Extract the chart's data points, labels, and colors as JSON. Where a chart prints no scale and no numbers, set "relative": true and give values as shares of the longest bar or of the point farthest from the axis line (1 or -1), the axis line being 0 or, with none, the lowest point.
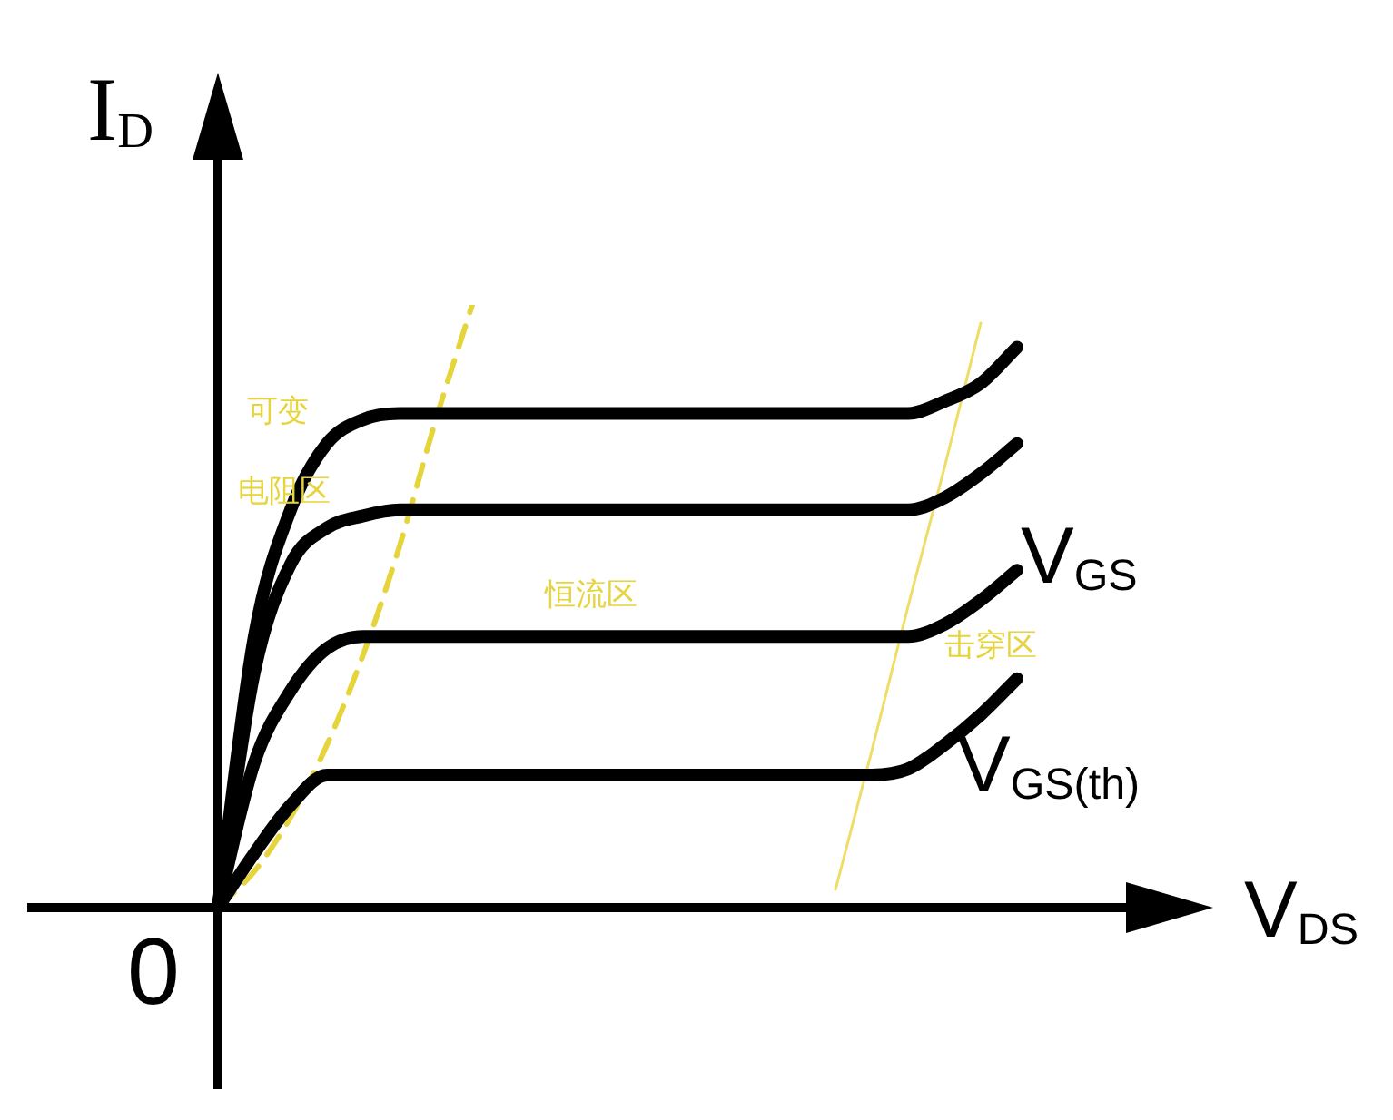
{
  "chart_data": {
    "type": "line",
    "relative": true,
    "xlabel": "V$_{DS}$",
    "ylabel": "I$_{D}$",
    "marker": "none",
    "legend": false,
    "categories": [
      null,
      null,
      null,
      null,
      null,
      null,
      null,
      null,
      null,
      null,
      null,
      null,
      null,
      null,
      null,
      null,
      null,
      null,
      null,
      null,
      null,
      null,
      null,
      null,
      null,
      null,
      null,
      null
    ],
    "series": [
      {
        "color": "#000000",
        "values": [
          0,
          0.45,
          0.66,
          0.77,
          0.81,
          0.82,
          0.82,
          0.82,
          0.82,
          0.82,
          0.82,
          0.82,
          0.82,
          0.82,
          0.82,
          0.82,
          0.82,
          0.82,
          0.82,
          0.82,
          0.84,
          0.87,
          0.93,
          null,
          null,
          null,
          null,
          null
        ]
      },
      {
        "color": "#000000",
        "values": [
          0,
          0.39,
          0.57,
          0.63,
          0.65,
          0.66,
          0.66,
          0.66,
          0.66,
          0.66,
          0.66,
          0.66,
          0.66,
          0.66,
          0.66,
          0.66,
          0.66,
          0.66,
          0.66,
          0.66,
          0.68,
          0.72,
          0.77,
          null,
          null,
          null,
          null,
          null
        ]
      },
      {
        "color": "#000000",
        "values": [
          0,
          0.24,
          0.36,
          0.43,
          0.45,
          0.45,
          0.45,
          0.45,
          0.45,
          0.45,
          0.45,
          0.45,
          0.45,
          0.45,
          0.45,
          0.45,
          0.45,
          0.45,
          0.45,
          0.45,
          0.47,
          0.51,
          0.56,
          null,
          null,
          null,
          null,
          null
        ]
      },
      {
        "color": "#000000",
        "values": [
          0,
          0.09,
          0.17,
          0.22,
          0.22,
          0.22,
          0.22,
          0.22,
          0.22,
          0.22,
          0.22,
          0.22,
          0.22,
          0.22,
          0.22,
          0.22,
          0.22,
          0.22,
          0.22,
          0.23,
          0.27,
          0.32,
          0.38,
          null,
          null,
          null,
          null,
          null
        ]
      },
      {
        "color": "#e6d43c",
        "line_style": "dashed",
        "values": [
          0,
          0.06,
          0.15,
          0.27,
          0.42,
          0.6,
          0.81,
          1,
          null,
          null,
          null,
          null,
          null,
          null,
          null,
          null,
          null,
          null,
          null,
          null,
          null,
          null,
          null,
          null,
          null,
          null,
          null,
          null
        ]
      },
      {
        "color": "#eedd66",
        "values": [
          null,
          null,
          null,
          null,
          null,
          null,
          null,
          null,
          null,
          null,
          null,
          null,
          null,
          null,
          null,
          null,
          null,
          0.03,
          0.26,
          0.5,
          0.73,
          0.97,
          null,
          null,
          null,
          null,
          null,
          null
        ]
      }
    ],
    "annotations": [
      "0",
      "可变",
      "电阻区",
      "恒流区",
      "击穿区",
      "V$_{GS}$",
      "V$_{GS(th)}$"
    ]
  }
}
